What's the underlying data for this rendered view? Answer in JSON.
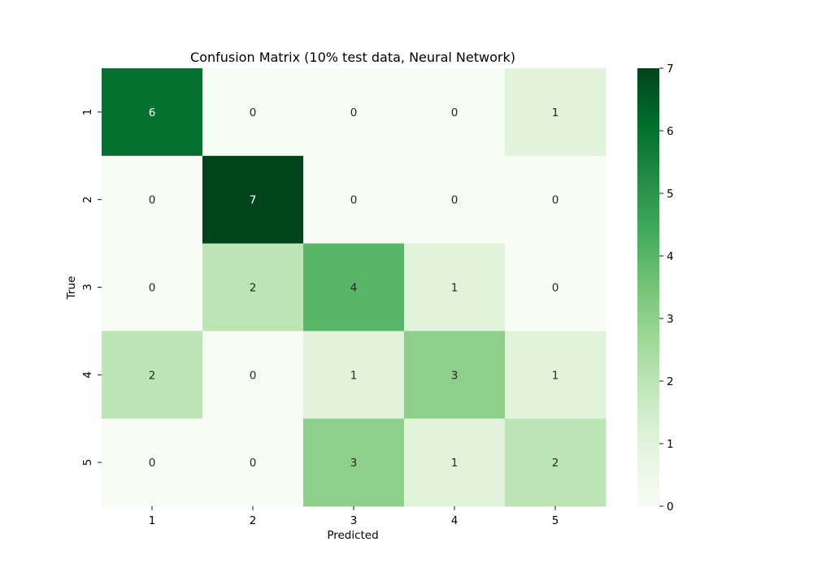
{
  "chart_data": {
    "type": "heatmap",
    "title": "Confusion Matrix (10% test data, Neural Network)",
    "xlabel": "Predicted",
    "ylabel": "True",
    "x_categories": [
      "1",
      "2",
      "3",
      "4",
      "5"
    ],
    "y_categories": [
      "1",
      "2",
      "3",
      "4",
      "5"
    ],
    "values": [
      [
        6,
        0,
        0,
        0,
        1
      ],
      [
        0,
        7,
        0,
        0,
        0
      ],
      [
        0,
        2,
        4,
        1,
        0
      ],
      [
        2,
        0,
        1,
        3,
        1
      ],
      [
        0,
        0,
        3,
        1,
        2
      ]
    ],
    "colorbar": {
      "min": 0,
      "max": 7,
      "ticks": [
        "0",
        "1",
        "2",
        "3",
        "4",
        "5",
        "6",
        "7"
      ]
    },
    "colormap": "Greens",
    "annotations": true,
    "grid": false
  }
}
